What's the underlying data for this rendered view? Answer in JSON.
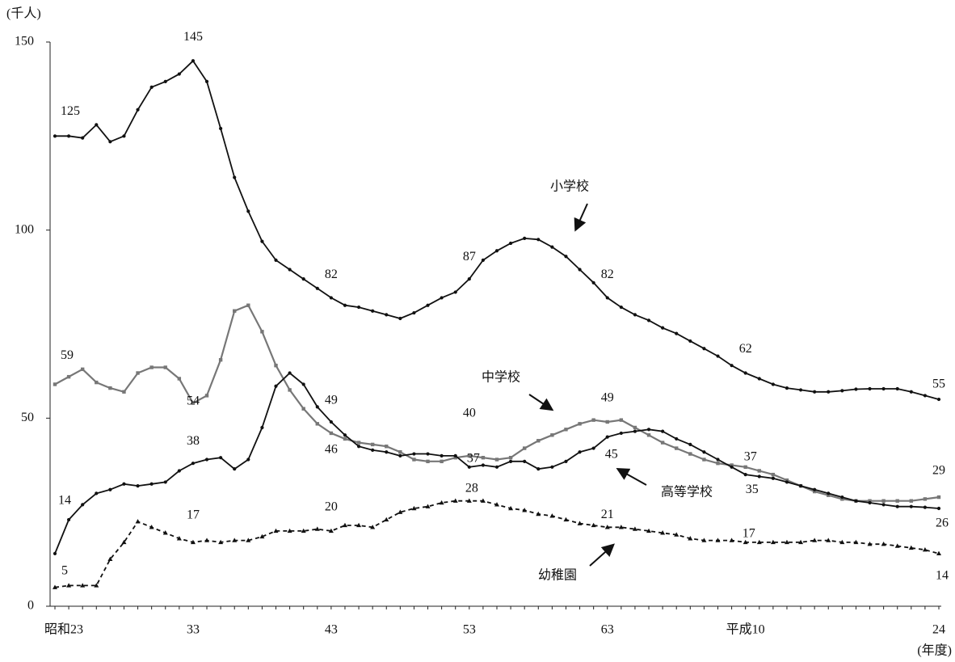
{
  "chart_data": {
    "type": "line",
    "y_label": "(千人)",
    "x_label": "(年度)",
    "categories": [
      "昭和23",
      null,
      null,
      null,
      null,
      null,
      null,
      null,
      null,
      null,
      "33",
      null,
      null,
      null,
      null,
      null,
      null,
      null,
      null,
      null,
      "43",
      null,
      null,
      null,
      null,
      null,
      null,
      null,
      null,
      null,
      "53",
      null,
      null,
      null,
      null,
      null,
      null,
      null,
      null,
      null,
      "63",
      null,
      null,
      null,
      null,
      null,
      null,
      null,
      null,
      null,
      "平成10",
      null,
      null,
      null,
      null,
      null,
      null,
      null,
      null,
      null,
      null,
      null,
      null,
      null,
      "24"
    ],
    "ylim": [
      0,
      150
    ],
    "yticks": [
      0,
      50,
      100,
      150
    ],
    "series": [
      {
        "name": "小学校",
        "color": "#111111",
        "line_style": "solid",
        "marker": "circle",
        "values": [
          125,
          125,
          124.5,
          128,
          123.5,
          125,
          132,
          138,
          139.5,
          141.5,
          145,
          139.5,
          127,
          114,
          105,
          97,
          92,
          89.5,
          87,
          84.5,
          82,
          80,
          79.5,
          78.5,
          77.5,
          76.5,
          78,
          80,
          82,
          83.5,
          87,
          92,
          94.5,
          96.5,
          97.8,
          97.5,
          95.5,
          93,
          89.5,
          86,
          82,
          79.5,
          77.5,
          76,
          74,
          72.5,
          70.5,
          68.5,
          66.5,
          64,
          62,
          60.5,
          59,
          58,
          57.5,
          57,
          57,
          57.3,
          57.7,
          57.8,
          57.8,
          57.8,
          57,
          56,
          55
        ],
        "value_labels": [
          "125",
          null,
          null,
          null,
          null,
          null,
          null,
          null,
          null,
          null,
          "145",
          null,
          null,
          null,
          null,
          null,
          null,
          null,
          null,
          null,
          "82",
          null,
          null,
          null,
          null,
          null,
          null,
          null,
          null,
          null,
          "87",
          null,
          null,
          null,
          null,
          null,
          null,
          null,
          null,
          null,
          "82",
          null,
          null,
          null,
          null,
          null,
          null,
          null,
          null,
          null,
          "62",
          null,
          null,
          null,
          null,
          null,
          null,
          null,
          null,
          null,
          null,
          null,
          null,
          null,
          "55"
        ]
      },
      {
        "name": "中学校",
        "color": "#777777",
        "line_style": "solid",
        "marker": "square",
        "values": [
          59,
          61,
          63,
          59.5,
          58,
          57,
          62,
          63.5,
          63.5,
          60.5,
          54,
          56,
          65.5,
          78.5,
          80,
          73,
          64,
          57.5,
          52.5,
          48.5,
          46,
          44.5,
          43.5,
          43,
          42.5,
          41,
          39,
          38.5,
          38.5,
          39.5,
          40,
          39.5,
          39,
          39.5,
          42,
          44,
          45.5,
          47,
          48.5,
          49.5,
          49,
          49.5,
          47.5,
          45.5,
          43.5,
          42,
          40.5,
          39,
          38,
          37.5,
          37,
          36,
          35,
          33.5,
          32,
          30.5,
          29.5,
          28.5,
          28,
          28,
          28,
          28,
          28,
          28.5,
          29
        ],
        "value_labels": [
          "59",
          null,
          null,
          null,
          null,
          null,
          null,
          null,
          null,
          null,
          "54",
          null,
          null,
          null,
          null,
          null,
          null,
          null,
          null,
          null,
          "46",
          null,
          null,
          null,
          null,
          null,
          null,
          null,
          null,
          null,
          "40",
          null,
          null,
          null,
          null,
          null,
          null,
          null,
          null,
          null,
          "49",
          null,
          null,
          null,
          null,
          null,
          null,
          null,
          null,
          null,
          "37",
          null,
          null,
          null,
          null,
          null,
          null,
          null,
          null,
          null,
          null,
          null,
          null,
          null,
          "29"
        ]
      },
      {
        "name": "高等学校",
        "color": "#111111",
        "line_style": "solid",
        "marker": "circle",
        "values": [
          14,
          23,
          27,
          30,
          31,
          32.5,
          32,
          32.5,
          33,
          36,
          38,
          39,
          39.5,
          36.5,
          39,
          47.5,
          58.5,
          62,
          59,
          53,
          49,
          45.5,
          42.5,
          41.5,
          41,
          40,
          40.5,
          40.5,
          40,
          40,
          37,
          37.5,
          37,
          38.5,
          38.5,
          36.5,
          37,
          38.5,
          41,
          42,
          45,
          46,
          46.5,
          47,
          46.5,
          44.5,
          43,
          41,
          39,
          37,
          35,
          34.5,
          34,
          33,
          32,
          31,
          30,
          29,
          28,
          27.5,
          27,
          26.5,
          26.5,
          26.3,
          26
        ],
        "value_labels": [
          "14",
          null,
          null,
          null,
          null,
          null,
          null,
          null,
          null,
          null,
          "38",
          null,
          null,
          null,
          null,
          null,
          null,
          null,
          null,
          null,
          "49",
          null,
          null,
          null,
          null,
          null,
          null,
          null,
          null,
          null,
          "37",
          null,
          null,
          null,
          null,
          null,
          null,
          null,
          null,
          null,
          "45",
          null,
          null,
          null,
          null,
          null,
          null,
          null,
          null,
          null,
          "35",
          null,
          null,
          null,
          null,
          null,
          null,
          null,
          null,
          null,
          null,
          null,
          null,
          null,
          "26"
        ]
      },
      {
        "name": "幼稚園",
        "color": "#111111",
        "line_style": "dashed",
        "marker": "triangle",
        "values": [
          5,
          5.5,
          5.5,
          5.5,
          12.5,
          17,
          22.5,
          21,
          19.5,
          18,
          17,
          17.5,
          17,
          17.5,
          17.5,
          18.5,
          20,
          20,
          20,
          20.5,
          20,
          21.5,
          21.5,
          21,
          23,
          25,
          26,
          26.5,
          27.5,
          28,
          28,
          28,
          27,
          26,
          25.5,
          24.5,
          24,
          23,
          22,
          21.5,
          21,
          21,
          20.5,
          20,
          19.5,
          19,
          18,
          17.5,
          17.5,
          17.5,
          17,
          17,
          17,
          17,
          17,
          17.5,
          17.5,
          17,
          17,
          16.5,
          16.5,
          16,
          15.5,
          15,
          14
        ],
        "value_labels": [
          "5",
          null,
          null,
          null,
          null,
          null,
          null,
          null,
          null,
          null,
          "17",
          null,
          null,
          null,
          null,
          null,
          null,
          null,
          null,
          null,
          "20",
          null,
          null,
          null,
          null,
          null,
          null,
          null,
          null,
          null,
          "28",
          null,
          null,
          null,
          null,
          null,
          null,
          null,
          null,
          null,
          "21",
          null,
          null,
          null,
          null,
          null,
          null,
          null,
          null,
          null,
          "17",
          null,
          null,
          null,
          null,
          null,
          null,
          null,
          null,
          null,
          null,
          null,
          null,
          null,
          "14"
        ]
      }
    ]
  }
}
